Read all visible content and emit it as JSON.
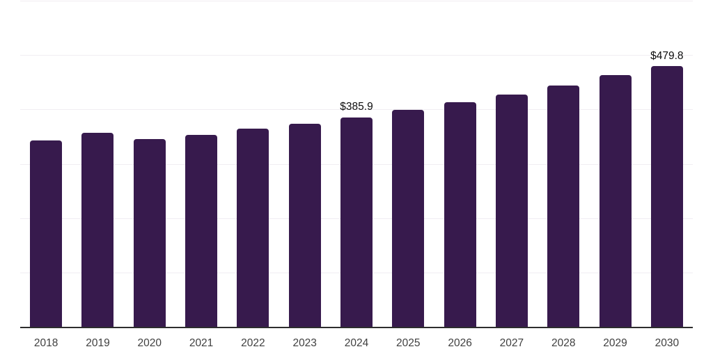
{
  "chart_data": {
    "type": "bar",
    "title": "",
    "xlabel": "",
    "ylabel": "",
    "categories": [
      "2018",
      "2019",
      "2020",
      "2021",
      "2022",
      "2023",
      "2024",
      "2025",
      "2026",
      "2027",
      "2028",
      "2029",
      "2030"
    ],
    "values": [
      343.5,
      357,
      346,
      353.5,
      364.5,
      374,
      385.9,
      399.5,
      413,
      428,
      444,
      463,
      479.8
    ],
    "data_labels": {
      "2024": "$385.9",
      "2030": "$479.8"
    },
    "ylim": [
      0,
      600
    ],
    "gridline_interval": 100,
    "grid": "horizontal",
    "legend": "none",
    "y_tick_labels_visible": false,
    "value_prefix": "$"
  },
  "colors": {
    "background": "#ffffff",
    "bar": "#371a4d",
    "gridline": "#f0edf2",
    "axis_line": "#2d2d2d",
    "x_label_text": "#3f3f3f",
    "data_label_text": "#0d0d0d"
  }
}
